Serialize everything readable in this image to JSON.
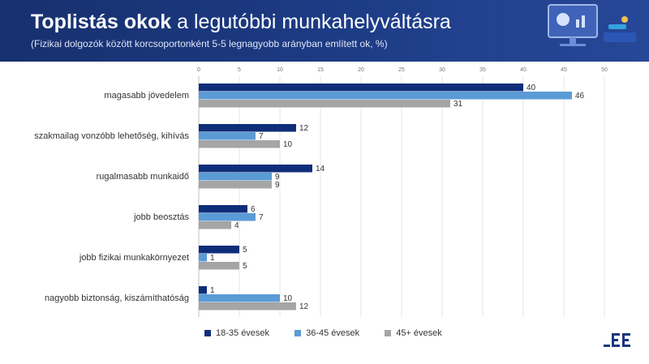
{
  "header": {
    "title_bold": "Toplistás okok",
    "title_rest": " a legutóbbi munkahelyváltásra",
    "subtitle": "(Fizikai dolgozók között korcsoportonként 5-5 legnagyobb arányban említett ok, %)"
  },
  "colors": {
    "s1": "#0f2e7a",
    "s2": "#5b9bd5",
    "s3": "#a5a5a5",
    "header": "#1b3680"
  },
  "chart_data": {
    "type": "bar",
    "orientation": "horizontal",
    "categories": [
      "magasabb jövedelem",
      "szakmailag vonzóbb lehetőség, kihívás",
      "rugalmasabb munkaidő",
      "jobb beosztás",
      "jobb fizikai munkakörnyezet",
      "nagyobb biztonság, kiszámíthatóság"
    ],
    "series": [
      {
        "name": "18-35 évesek",
        "values": [
          40,
          12,
          14,
          6,
          5,
          1
        ]
      },
      {
        "name": "36-45 évesek",
        "values": [
          46,
          7,
          9,
          7,
          1,
          10
        ]
      },
      {
        "name": "45+ évesek",
        "values": [
          31,
          10,
          9,
          4,
          5,
          12
        ]
      }
    ],
    "xlim": [
      0,
      50
    ],
    "xticks": [
      0,
      5,
      10,
      15,
      20,
      25,
      30,
      35,
      40,
      45,
      50
    ],
    "grid": true,
    "legend": "bottom"
  }
}
